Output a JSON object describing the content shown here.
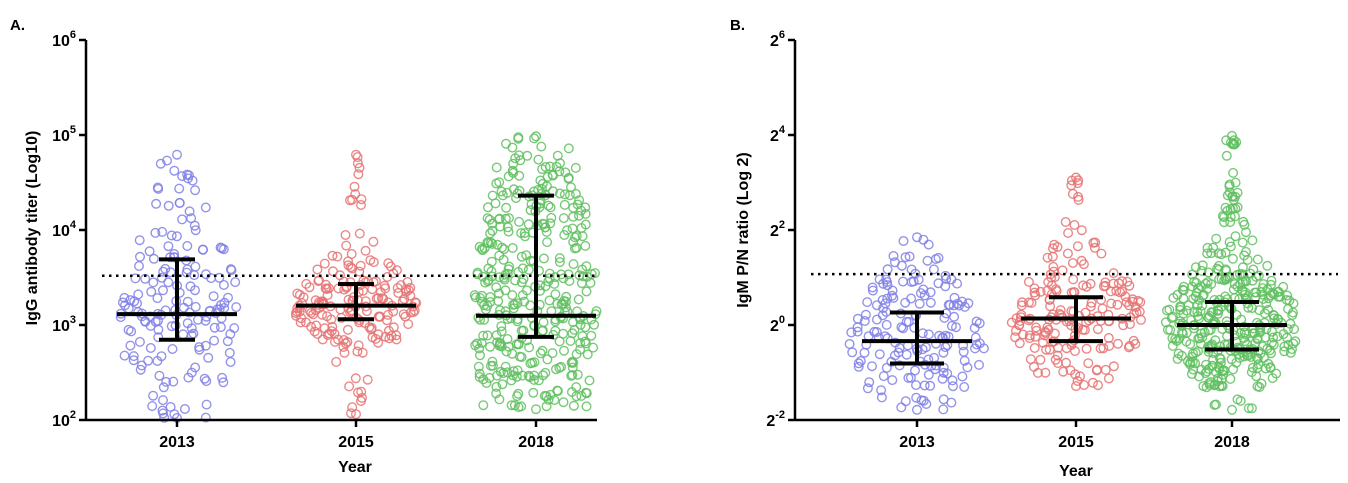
{
  "chart_data": [
    {
      "type": "scatter",
      "panel_label": "A.",
      "xlabel": "Year",
      "ylabel": "IgG antibody titer (Log10)",
      "categories": [
        "2013",
        "2015",
        "2018"
      ],
      "y_scale": "log10",
      "ylim": [
        100,
        1000000
      ],
      "y_ticks": [
        {
          "value": 100,
          "base": "10",
          "exp": "2"
        },
        {
          "value": 1000,
          "base": "10",
          "exp": "3"
        },
        {
          "value": 10000,
          "base": "10",
          "exp": "4"
        },
        {
          "value": 100000,
          "base": "10",
          "exp": "5"
        },
        {
          "value": 1000000,
          "base": "10",
          "exp": "6"
        }
      ],
      "cutoff_line": 3300,
      "grid": false,
      "series": [
        {
          "category": "2013",
          "color": "#8080e6",
          "n": 170,
          "median": 1300,
          "q1": 700,
          "q3": 4900,
          "min": 105,
          "max": 62000
        },
        {
          "category": "2015",
          "color": "#e67373",
          "n": 190,
          "median": 1600,
          "q1": 1150,
          "q3": 2700,
          "min": 115,
          "max": 62000
        },
        {
          "category": "2018",
          "color": "#5fbf5f",
          "n": 380,
          "median": 1250,
          "q1": 750,
          "q3": 23000,
          "min": 130,
          "max": 97000
        }
      ]
    },
    {
      "type": "scatter",
      "panel_label": "B.",
      "xlabel": "Year",
      "ylabel": "IgM P/N ratio (Log 2)",
      "categories": [
        "2013",
        "2015",
        "2018"
      ],
      "y_scale": "log2",
      "ylim": [
        0.25,
        64
      ],
      "y_ticks": [
        {
          "value": 0.25,
          "base": "2",
          "exp": "-2"
        },
        {
          "value": 1,
          "base": "2",
          "exp": "0"
        },
        {
          "value": 4,
          "base": "2",
          "exp": "2"
        },
        {
          "value": 16,
          "base": "2",
          "exp": "4"
        },
        {
          "value": 64,
          "base": "2",
          "exp": "6"
        }
      ],
      "cutoff_line": 2.1,
      "grid": false,
      "series": [
        {
          "category": "2013",
          "color": "#8080e6",
          "n": 170,
          "median": 0.79,
          "q1": 0.57,
          "q3": 1.2,
          "min": 0.29,
          "max": 3.6
        },
        {
          "category": "2015",
          "color": "#e67373",
          "n": 190,
          "median": 1.1,
          "q1": 0.79,
          "q3": 1.5,
          "min": 0.41,
          "max": 8.6
        },
        {
          "category": "2018",
          "color": "#5fbf5f",
          "n": 380,
          "median": 1.0,
          "q1": 0.7,
          "q3": 1.4,
          "min": 0.29,
          "max": 15.8
        }
      ]
    }
  ]
}
